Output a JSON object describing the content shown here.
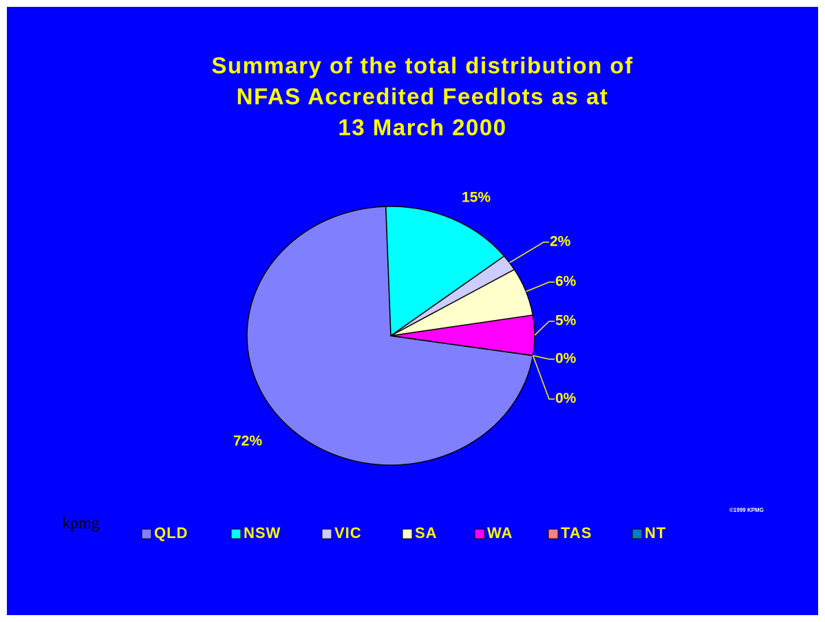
{
  "chart_data": {
    "type": "pie",
    "title_lines": [
      "Summary of the total distribution of",
      "NFAS Accredited Feedlots as at",
      "13 March 2000"
    ],
    "categories": [
      "QLD",
      "NSW",
      "VIC",
      "SA",
      "WA",
      "TAS",
      "NT"
    ],
    "values": [
      72,
      15,
      2,
      6,
      5,
      0,
      0
    ],
    "value_labels": [
      "72%",
      "15%",
      "2%",
      "6%",
      "5%",
      "0%",
      "0%"
    ],
    "colors": [
      "#8080ff",
      "#00ffff",
      "#ccccff",
      "#ffffcc",
      "#ff00ff",
      "#ff8080",
      "#0080c0"
    ],
    "legend": "bottom",
    "brand": "kpmg",
    "copyright": "©1999 KPMG"
  }
}
